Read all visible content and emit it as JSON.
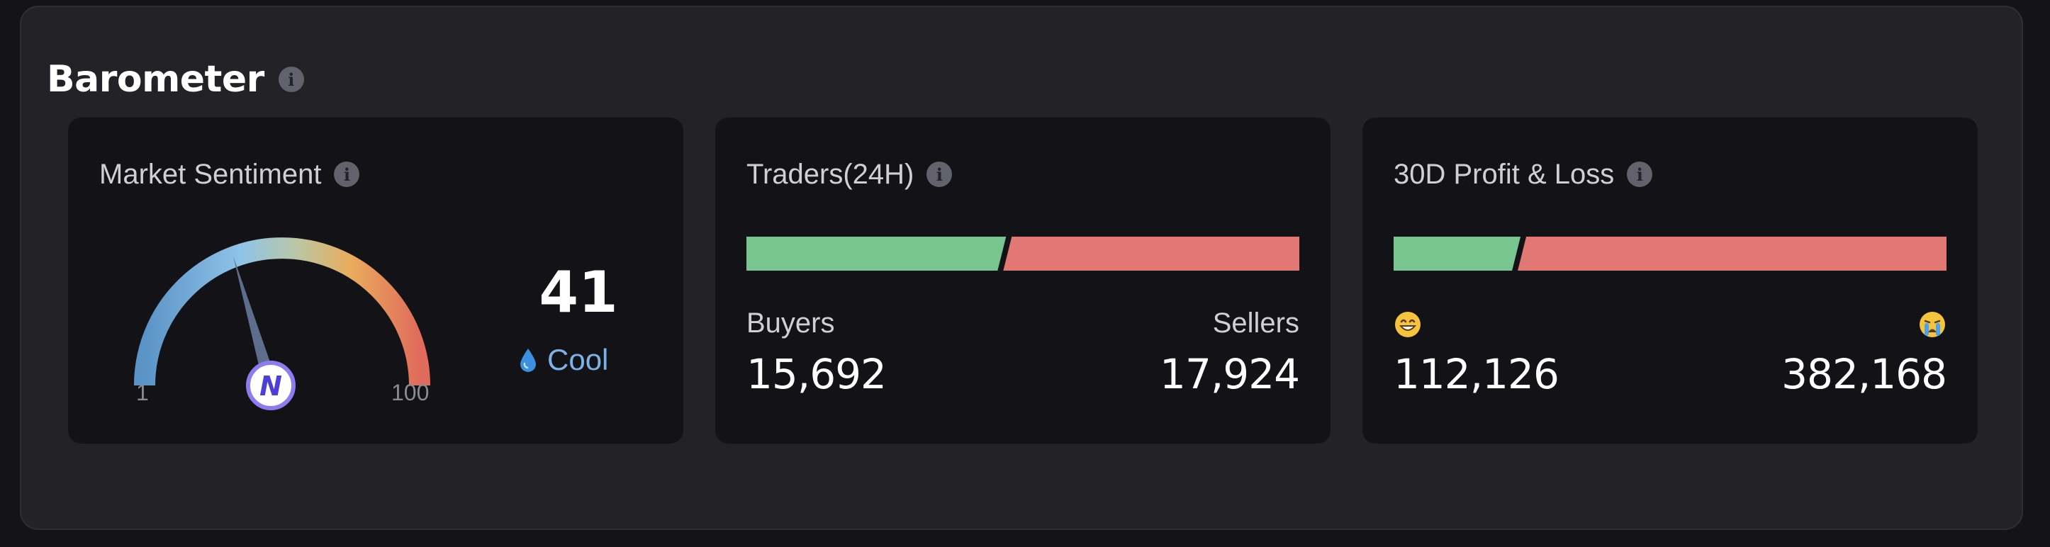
{
  "header": {
    "title": "Barometer",
    "info_icon": "info-icon"
  },
  "colors": {
    "buy": "#79c58f",
    "sell": "#e27874",
    "cool": "#7cb2e6",
    "card_bg": "#131317",
    "panel_bg": "#222227"
  },
  "sentiment": {
    "title": "Market Sentiment",
    "value": "41",
    "label": "Cool",
    "label_icon": "droplet-icon",
    "min_label": "1",
    "max_label": "100",
    "needle_fraction": 0.41
  },
  "traders": {
    "title": "Traders(24H)",
    "buyers_label": "Buyers",
    "sellers_label": "Sellers",
    "buyers_value": "15,692",
    "sellers_value": "17,924",
    "buy_share": 0.467
  },
  "pnl": {
    "title": "30D Profit & Loss",
    "profit_icon": "grinning-face-icon",
    "loss_icon": "crying-face-icon",
    "profit_value": "112,126",
    "loss_value": "382,168",
    "profit_share": 0.227
  }
}
